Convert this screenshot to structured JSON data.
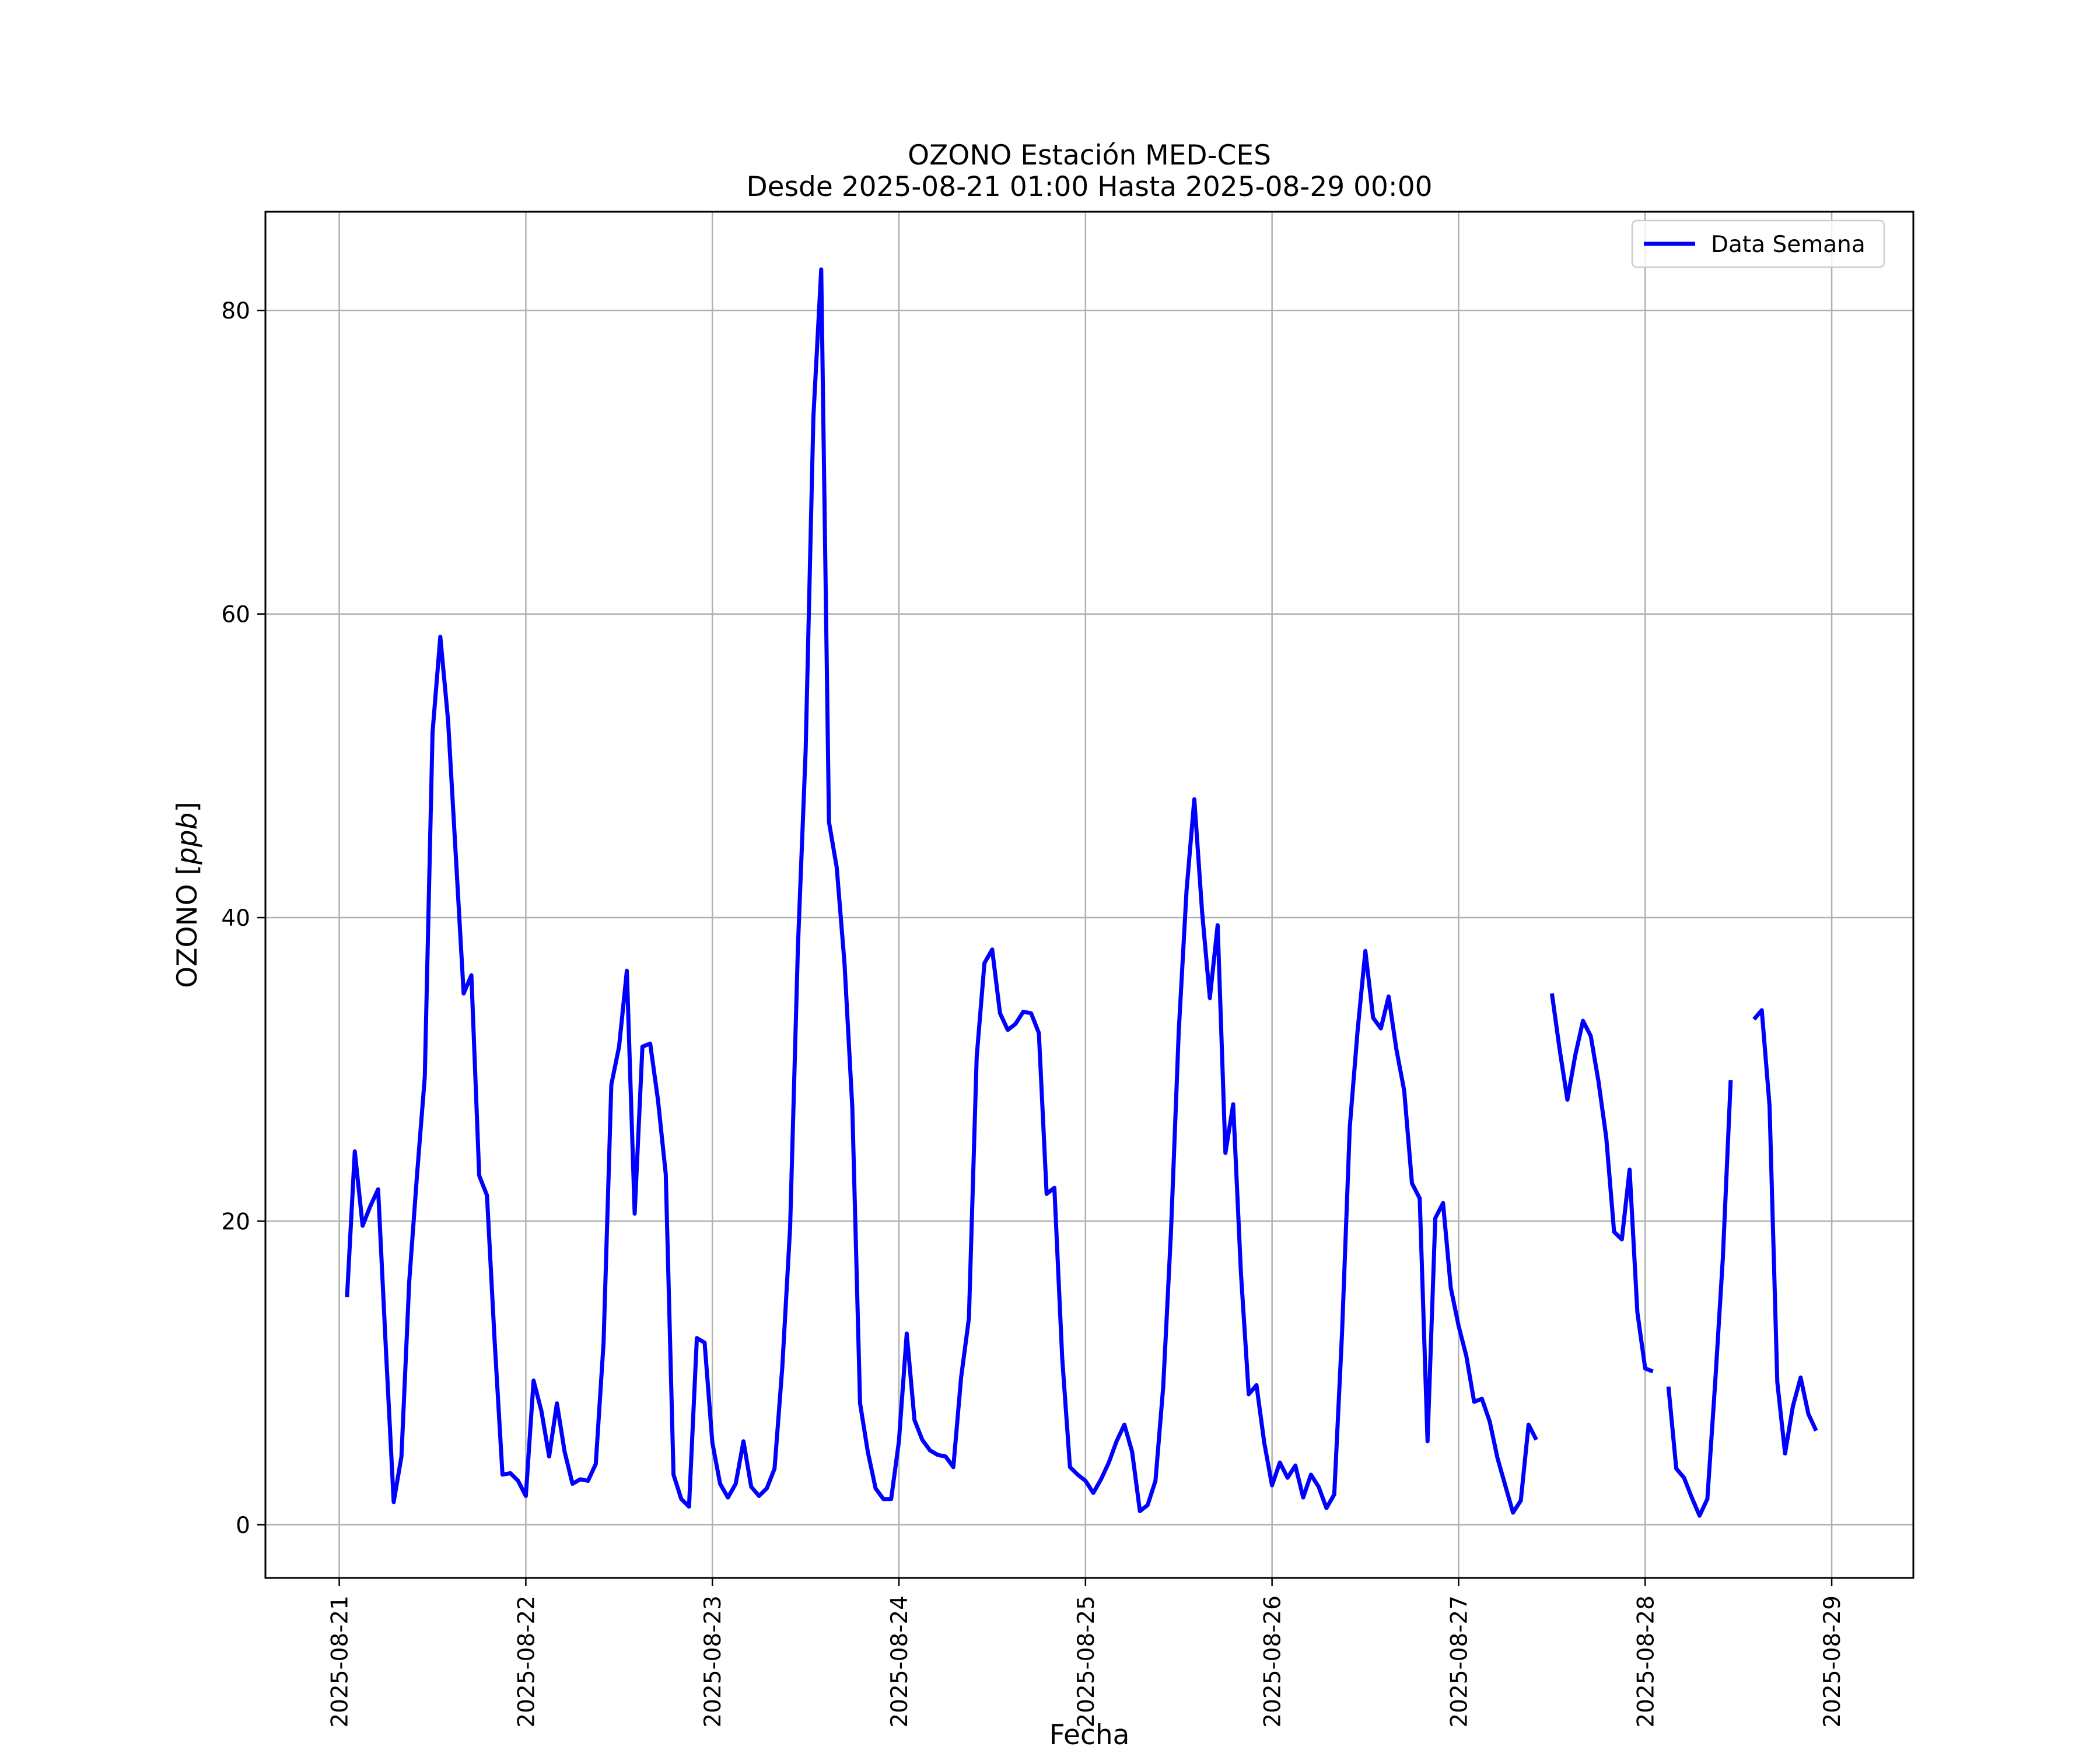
{
  "chart_data": {
    "type": "line",
    "title": "OZONO Estación MED-CES",
    "subtitle": "Desde 2025-08-21 01:00 Hasta 2025-08-29 00:00",
    "xlabel": "Fecha",
    "ylabel": "OZONO",
    "ylabel_unit": "ppb",
    "xlim": [
      "2025-08-20 14:30",
      "2025-08-29 10:30"
    ],
    "ylim": [
      -3.5,
      86.5
    ],
    "grid": true,
    "legend_position": "top-right",
    "x_ticks": [
      "2025-08-21",
      "2025-08-22",
      "2025-08-23",
      "2025-08-24",
      "2025-08-25",
      "2025-08-26",
      "2025-08-27",
      "2025-08-28",
      "2025-08-29"
    ],
    "y_ticks": [
      0,
      20,
      40,
      60,
      80
    ],
    "line_color": "#0000ff",
    "series": [
      {
        "name": "Data Semana",
        "start": "2025-08-21 01:00",
        "interval_hours": 1,
        "values": [
          15,
          24.6,
          19.7,
          21,
          22.1,
          11.6,
          1.5,
          4.5,
          16,
          23,
          29.5,
          52.2,
          58.5,
          53,
          44,
          35,
          36.2,
          23,
          21.7,
          12,
          3.3,
          3.4,
          2.9,
          1.9,
          9.5,
          7.5,
          4.5,
          8,
          4.8,
          2.7,
          3,
          2.9,
          4,
          12,
          29,
          31.5,
          36.5,
          20.5,
          31.5,
          31.7,
          28,
          23.1,
          3.3,
          1.7,
          1.2,
          12.3,
          12,
          5.4,
          2.7,
          1.8,
          2.7,
          5.5,
          2.5,
          1.9,
          2.4,
          3.7,
          10.4,
          19.6,
          38,
          51,
          73,
          82.7,
          46.3,
          43.3,
          37,
          27.5,
          8,
          4.8,
          2.4,
          1.7,
          1.7,
          5.5,
          12.6,
          6.9,
          5.6,
          4.9,
          4.6,
          4.5,
          3.8,
          9.7,
          13.6,
          30.8,
          37,
          37.9,
          33.7,
          32.6,
          33,
          33.8,
          33.7,
          32.4,
          21.8,
          22.2,
          11,
          3.8,
          3.3,
          2.9,
          2.1,
          3,
          4.1,
          5.5,
          6.6,
          4.8,
          0.9,
          1.3,
          2.9,
          9.1,
          19.3,
          32.5,
          41.8,
          47.8,
          40.4,
          34.7,
          39.5,
          24.5,
          27.7,
          16.6,
          8.6,
          9.2,
          5.4,
          2.6,
          4.1,
          3.1,
          3.9,
          1.8,
          3.3,
          2.5,
          1.1,
          2,
          12.6,
          26.2,
          32.5,
          37.8,
          33.4,
          32.7,
          34.8,
          31.3,
          28.6,
          22.5,
          21.5,
          5.5,
          20.2,
          21.2,
          15.6,
          13.1,
          11.1,
          8.1,
          8.3,
          6.8,
          4.4,
          2.6,
          0.8,
          1.6,
          6.6,
          5.6,
          null,
          35,
          31.3,
          28,
          30.9,
          33.2,
          32.2,
          29.2,
          25.5,
          19.3,
          18.8,
          23.4,
          14,
          10.3,
          10.1,
          null,
          9.1,
          3.7,
          3.1,
          1.8,
          0.6,
          1.7,
          9.3,
          17.6,
          29.3,
          null,
          null,
          33.3,
          33.9,
          27.6,
          9.4,
          4.7,
          7.8,
          9.7,
          7.3,
          6.2
        ]
      }
    ]
  }
}
